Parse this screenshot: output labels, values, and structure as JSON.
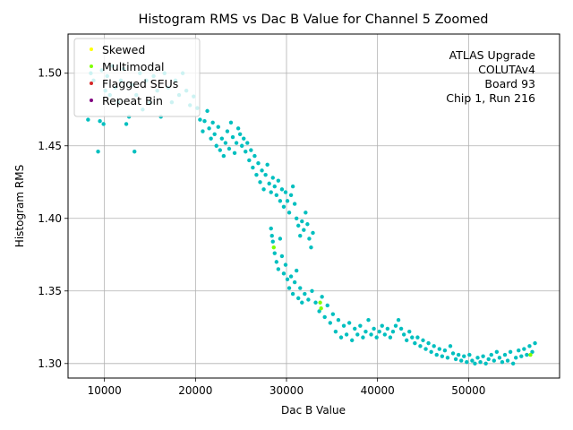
{
  "chart_data": {
    "type": "scatter",
    "title": "Histogram RMS vs Dac B Value for Channel 5 Zoomed",
    "xlabel": "Dac B Value",
    "ylabel": "Histogram RMS",
    "xlim": [
      6000,
      60000
    ],
    "ylim": [
      1.29,
      1.527
    ],
    "xticks": [
      10000,
      20000,
      30000,
      40000,
      50000
    ],
    "xtick_labels": [
      "10000",
      "20000",
      "30000",
      "40000",
      "50000"
    ],
    "yticks": [
      1.3,
      1.35,
      1.4,
      1.45,
      1.5
    ],
    "ytick_labels": [
      "1.30",
      "1.35",
      "1.40",
      "1.45",
      "1.50"
    ],
    "grid": true,
    "legend_position": "top-left",
    "annotation": [
      "ATLAS Upgrade",
      "COLUTAv4",
      "Board 93",
      "Chip 1, Run 216"
    ],
    "series": [
      {
        "name": "Data",
        "color": "#00bfbf",
        "in_legend": false,
        "points": [
          [
            8200,
            1.468
          ],
          [
            8500,
            1.5
          ],
          [
            8800,
            1.495
          ],
          [
            9300,
            1.446
          ],
          [
            9500,
            1.467
          ],
          [
            9700,
            1.502
          ],
          [
            9900,
            1.465
          ],
          [
            10100,
            1.488
          ],
          [
            10300,
            1.498
          ],
          [
            10600,
            1.485
          ],
          [
            10900,
            1.505
          ],
          [
            11200,
            1.49
          ],
          [
            11500,
            1.48
          ],
          [
            11800,
            1.495
          ],
          [
            12100,
            1.503
          ],
          [
            12400,
            1.465
          ],
          [
            12700,
            1.47
          ],
          [
            13000,
            1.492
          ],
          [
            13300,
            1.446
          ],
          [
            13500,
            1.485
          ],
          [
            13900,
            1.5
          ],
          [
            14200,
            1.475
          ],
          [
            14600,
            1.495
          ],
          [
            15000,
            1.48
          ],
          [
            15400,
            1.498
          ],
          [
            15800,
            1.488
          ],
          [
            16200,
            1.47
          ],
          [
            16600,
            1.5
          ],
          [
            17000,
            1.49
          ],
          [
            17400,
            1.48
          ],
          [
            17800,
            1.495
          ],
          [
            18200,
            1.485
          ],
          [
            18600,
            1.5
          ],
          [
            19000,
            1.488
          ],
          [
            19400,
            1.478
          ],
          [
            19800,
            1.484
          ],
          [
            20200,
            1.476
          ],
          [
            20500,
            1.468
          ],
          [
            20800,
            1.46
          ],
          [
            21000,
            1.467
          ],
          [
            21300,
            1.474
          ],
          [
            21500,
            1.462
          ],
          [
            21700,
            1.455
          ],
          [
            21900,
            1.466
          ],
          [
            22100,
            1.458
          ],
          [
            22300,
            1.45
          ],
          [
            22500,
            1.463
          ],
          [
            22700,
            1.447
          ],
          [
            22900,
            1.455
          ],
          [
            23100,
            1.443
          ],
          [
            23300,
            1.452
          ],
          [
            23500,
            1.46
          ],
          [
            23700,
            1.448
          ],
          [
            23900,
            1.466
          ],
          [
            24100,
            1.456
          ],
          [
            24300,
            1.445
          ],
          [
            24500,
            1.452
          ],
          [
            24700,
            1.462
          ],
          [
            24900,
            1.458
          ],
          [
            25100,
            1.45
          ],
          [
            25300,
            1.455
          ],
          [
            25500,
            1.446
          ],
          [
            25700,
            1.452
          ],
          [
            25900,
            1.44
          ],
          [
            26100,
            1.447
          ],
          [
            26300,
            1.435
          ],
          [
            26500,
            1.443
          ],
          [
            26700,
            1.43
          ],
          [
            26900,
            1.438
          ],
          [
            27100,
            1.425
          ],
          [
            27300,
            1.433
          ],
          [
            27500,
            1.42
          ],
          [
            27700,
            1.43
          ],
          [
            27900,
            1.437
          ],
          [
            28100,
            1.424
          ],
          [
            28300,
            1.418
          ],
          [
            28500,
            1.428
          ],
          [
            28700,
            1.422
          ],
          [
            28900,
            1.416
          ],
          [
            29100,
            1.426
          ],
          [
            29300,
            1.412
          ],
          [
            29500,
            1.42
          ],
          [
            29700,
            1.408
          ],
          [
            29900,
            1.418
          ],
          [
            30100,
            1.412
          ],
          [
            30300,
            1.404
          ],
          [
            30500,
            1.416
          ],
          [
            30700,
            1.422
          ],
          [
            30900,
            1.41
          ],
          [
            31100,
            1.4
          ],
          [
            31300,
            1.395
          ],
          [
            31500,
            1.388
          ],
          [
            31700,
            1.398
          ],
          [
            31900,
            1.392
          ],
          [
            32100,
            1.404
          ],
          [
            32300,
            1.396
          ],
          [
            32500,
            1.386
          ],
          [
            32700,
            1.38
          ],
          [
            32900,
            1.39
          ],
          [
            28300,
            1.393
          ],
          [
            28400,
            1.388
          ],
          [
            28500,
            1.384
          ],
          [
            28700,
            1.376
          ],
          [
            28900,
            1.37
          ],
          [
            29100,
            1.365
          ],
          [
            29300,
            1.386
          ],
          [
            29500,
            1.374
          ],
          [
            29700,
            1.362
          ],
          [
            29900,
            1.368
          ],
          [
            30100,
            1.358
          ],
          [
            30300,
            1.352
          ],
          [
            30500,
            1.36
          ],
          [
            30700,
            1.348
          ],
          [
            30900,
            1.356
          ],
          [
            31100,
            1.364
          ],
          [
            31300,
            1.345
          ],
          [
            31500,
            1.352
          ],
          [
            31700,
            1.342
          ],
          [
            32000,
            1.348
          ],
          [
            32400,
            1.344
          ],
          [
            32800,
            1.35
          ],
          [
            33200,
            1.342
          ],
          [
            33600,
            1.336
          ],
          [
            33900,
            1.346
          ],
          [
            34200,
            1.332
          ],
          [
            34500,
            1.34
          ],
          [
            34800,
            1.328
          ],
          [
            35100,
            1.334
          ],
          [
            35400,
            1.322
          ],
          [
            35700,
            1.33
          ],
          [
            36000,
            1.318
          ],
          [
            36300,
            1.326
          ],
          [
            36600,
            1.32
          ],
          [
            36900,
            1.328
          ],
          [
            37200,
            1.316
          ],
          [
            37500,
            1.324
          ],
          [
            37800,
            1.32
          ],
          [
            38100,
            1.326
          ],
          [
            38400,
            1.318
          ],
          [
            38700,
            1.322
          ],
          [
            39000,
            1.33
          ],
          [
            39300,
            1.32
          ],
          [
            39600,
            1.324
          ],
          [
            39900,
            1.318
          ],
          [
            40200,
            1.322
          ],
          [
            40500,
            1.326
          ],
          [
            40800,
            1.32
          ],
          [
            41100,
            1.324
          ],
          [
            41400,
            1.318
          ],
          [
            41700,
            1.322
          ],
          [
            42000,
            1.326
          ],
          [
            42300,
            1.33
          ],
          [
            42600,
            1.324
          ],
          [
            42900,
            1.32
          ],
          [
            43200,
            1.316
          ],
          [
            43500,
            1.322
          ],
          [
            43800,
            1.318
          ],
          [
            44100,
            1.314
          ],
          [
            44400,
            1.318
          ],
          [
            44700,
            1.312
          ],
          [
            45000,
            1.316
          ],
          [
            45300,
            1.31
          ],
          [
            45600,
            1.314
          ],
          [
            45900,
            1.308
          ],
          [
            46200,
            1.312
          ],
          [
            46500,
            1.306
          ],
          [
            46800,
            1.31
          ],
          [
            47100,
            1.305
          ],
          [
            47400,
            1.309
          ],
          [
            47700,
            1.304
          ],
          [
            48000,
            1.312
          ],
          [
            48300,
            1.307
          ],
          [
            48600,
            1.303
          ],
          [
            48900,
            1.306
          ],
          [
            49200,
            1.302
          ],
          [
            49500,
            1.305
          ],
          [
            49800,
            1.301
          ],
          [
            50100,
            1.306
          ],
          [
            50400,
            1.302
          ],
          [
            50700,
            1.3
          ],
          [
            51000,
            1.304
          ],
          [
            51300,
            1.301
          ],
          [
            51600,
            1.305
          ],
          [
            51900,
            1.3
          ],
          [
            52200,
            1.303
          ],
          [
            52500,
            1.306
          ],
          [
            52800,
            1.302
          ],
          [
            53100,
            1.308
          ],
          [
            53400,
            1.304
          ],
          [
            53700,
            1.301
          ],
          [
            54000,
            1.306
          ],
          [
            54300,
            1.302
          ],
          [
            54600,
            1.308
          ],
          [
            54900,
            1.3
          ],
          [
            55200,
            1.304
          ],
          [
            55500,
            1.309
          ],
          [
            55800,
            1.305
          ],
          [
            56100,
            1.31
          ],
          [
            56400,
            1.306
          ],
          [
            56700,
            1.312
          ],
          [
            57000,
            1.308
          ],
          [
            57300,
            1.314
          ]
        ]
      },
      {
        "name": "Skewed",
        "color": "#ffff00",
        "in_legend": true,
        "points": []
      },
      {
        "name": "Multimodal",
        "color": "#7fff00",
        "in_legend": true,
        "points": [
          [
            28600,
            1.38
          ],
          [
            33700,
            1.342
          ],
          [
            33800,
            1.338
          ],
          [
            56800,
            1.306
          ]
        ]
      },
      {
        "name": "Flagged SEUs",
        "color": "#d62728",
        "in_legend": true,
        "points": []
      },
      {
        "name": "Repeat Bin",
        "color": "#800080",
        "in_legend": true,
        "points": []
      }
    ]
  }
}
